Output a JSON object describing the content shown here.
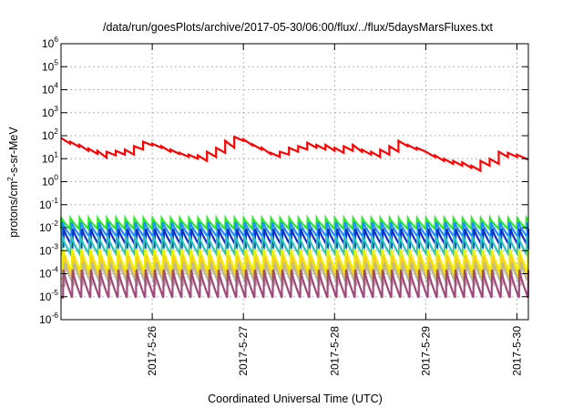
{
  "chart_data": {
    "type": "line",
    "title": "/data/run/goesPlots/archive/2017-05-30/06:00/flux/../flux/5daysMarsFluxes.txt",
    "xlabel": "Coordinated Universal Time (UTC)",
    "ylabel_parts": [
      "protons/cm",
      "2",
      "-s-sr-MeV"
    ],
    "x_start": "2017-05-25T03:00",
    "x_end": "2017-05-30T06:00",
    "xlim_days": [
      0,
      5.125
    ],
    "x_ticks": [
      {
        "label": "2017-5-26",
        "day": 1
      },
      {
        "label": "2017-5-27",
        "day": 2
      },
      {
        "label": "2017-5-28",
        "day": 3
      },
      {
        "label": "2017-5-29",
        "day": 4
      },
      {
        "label": "2017-5-30",
        "day": 5
      }
    ],
    "y_scale": "log",
    "ylim": [
      1e-06,
      1000000.0
    ],
    "y_ticks": [
      {
        "base": "10",
        "exp": "6",
        "value": 1000000.0
      },
      {
        "base": "10",
        "exp": "5",
        "value": 100000.0
      },
      {
        "base": "10",
        "exp": "4",
        "value": 10000.0
      },
      {
        "base": "10",
        "exp": "3",
        "value": 1000.0
      },
      {
        "base": "10",
        "exp": "2",
        "value": 100.0
      },
      {
        "base": "10",
        "exp": "1",
        "value": 10.0
      },
      {
        "base": "10",
        "exp": "0",
        "value": 1
      },
      {
        "base": "10",
        "exp": "-1",
        "value": 0.1
      },
      {
        "base": "10",
        "exp": "-2",
        "value": 0.01
      },
      {
        "base": "10",
        "exp": "-3",
        "value": 0.001
      },
      {
        "base": "10",
        "exp": "-4",
        "value": 0.0001
      },
      {
        "base": "10",
        "exp": "-5",
        "value": 1e-05
      },
      {
        "base": "10",
        "exp": "-6",
        "value": 1e-06
      }
    ],
    "grid": true,
    "series": [
      {
        "color": "#ff0000",
        "x": [
          0,
          0.1,
          0.1,
          0.2,
          0.2,
          0.3,
          0.3,
          0.4,
          0.4,
          0.5,
          0.5,
          0.6,
          0.6,
          0.7,
          0.7,
          0.8,
          0.8,
          0.9,
          0.9,
          1.0,
          1.0,
          1.1,
          1.1,
          1.2,
          1.2,
          1.3,
          1.3,
          1.4,
          1.4,
          1.5,
          1.5,
          1.6,
          1.6,
          1.7,
          1.7,
          1.8,
          1.8,
          1.9,
          1.9,
          2.0,
          2.0,
          2.1,
          2.1,
          2.2,
          2.2,
          2.3,
          2.3,
          2.4,
          2.4,
          2.5,
          2.5,
          2.6,
          2.6,
          2.7,
          2.7,
          2.8,
          2.8,
          2.9,
          2.9,
          3.0,
          3.0,
          3.1,
          3.1,
          3.2,
          3.2,
          3.3,
          3.3,
          3.4,
          3.4,
          3.5,
          3.5,
          3.6,
          3.6,
          3.7,
          3.7,
          3.8,
          3.8,
          3.9,
          3.9,
          4.0,
          4.0,
          4.1,
          4.1,
          4.2,
          4.2,
          4.3,
          4.3,
          4.4,
          4.4,
          4.5,
          4.5,
          4.6,
          4.6,
          4.7,
          4.7,
          4.8,
          4.8,
          4.9,
          4.9,
          5.0,
          5.0,
          5.125
        ],
        "y": [
          80,
          45,
          55,
          33,
          40,
          22,
          28,
          16,
          22,
          11,
          20,
          14,
          22,
          15,
          25,
          15,
          35,
          25,
          55,
          38,
          45,
          30,
          35,
          20,
          25,
          16,
          18,
          12,
          15,
          10,
          14,
          8,
          20,
          12,
          30,
          18,
          60,
          30,
          90,
          60,
          70,
          38,
          42,
          25,
          30,
          16,
          18,
          12,
          20,
          15,
          30,
          20,
          35,
          25,
          50,
          30,
          40,
          25,
          40,
          22,
          30,
          18,
          35,
          22,
          40,
          20,
          25,
          15,
          20,
          12,
          25,
          15,
          35,
          20,
          60,
          35,
          40,
          25,
          30,
          20,
          20,
          12,
          14,
          8,
          10,
          6,
          8,
          5,
          7,
          4,
          5,
          3,
          8,
          5,
          10,
          6,
          20,
          12,
          18,
          12,
          15,
          9
        ]
      }
    ],
    "bands": [
      {
        "color": "#22ee22",
        "lo": 0.009,
        "hi": 0.026,
        "phase": 0.0
      },
      {
        "color": "#1b8fff",
        "lo": 0.004,
        "hi": 0.017,
        "phase": 0.012
      },
      {
        "color": "#1030c8",
        "lo": 0.0015,
        "hi": 0.009,
        "phase": 0.025
      },
      {
        "color": "#26c6b8",
        "lo": 0.0007,
        "hi": 0.0045,
        "phase": 0.006
      },
      {
        "color": "#f0f000",
        "lo": 0.00012,
        "hi": 0.0012,
        "phase": 0.018
      },
      {
        "color": "#f7d020",
        "lo": 6e-05,
        "hi": 0.0006,
        "phase": 0.03
      },
      {
        "color": "#b8b8a0",
        "lo": 3e-05,
        "hi": 0.0003,
        "phase": 0.04
      },
      {
        "color": "#a14a7a",
        "lo": 9e-06,
        "hi": 0.00015,
        "phase": 0.022
      }
    ],
    "band_period_days": 0.1
  }
}
